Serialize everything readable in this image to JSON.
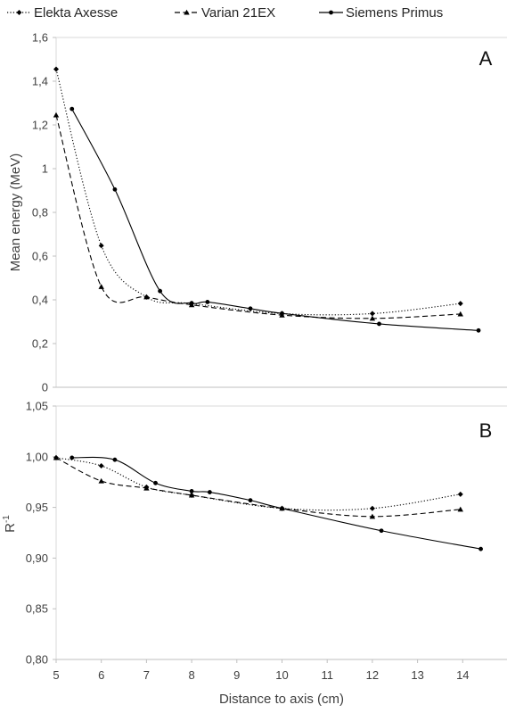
{
  "chart_data": {
    "type": "line",
    "legend": {
      "placement": "top",
      "entries": [
        {
          "name": "Elekta Axesse",
          "marker": "diamond",
          "dash": "dotted"
        },
        {
          "name": "Varian 21EX",
          "marker": "triangle",
          "dash": "dashed"
        },
        {
          "name": "Siemens Primus",
          "marker": "circle",
          "dash": "solid"
        }
      ]
    },
    "xlabel": "Distance to axis (cm)",
    "xlim": [
      5,
      14.5
    ],
    "xticks": [
      5,
      6,
      7,
      8,
      9,
      10,
      11,
      12,
      13,
      14
    ],
    "xtick_labels": [
      "5",
      "6",
      "7",
      "8",
      "9",
      "10",
      "11",
      "12",
      "13",
      "14"
    ],
    "grid": false,
    "line_color": "#000000",
    "panels": [
      {
        "label": "A",
        "ylabel": "Mean energy (MeV)",
        "ylim": [
          0,
          1.6
        ],
        "yticks": [
          0,
          0.2,
          0.4,
          0.6,
          0.8,
          1.0,
          1.2,
          1.4,
          1.6
        ],
        "ytick_labels": [
          "0",
          "0,2",
          "0,4",
          "0,6",
          "0,8",
          "1",
          "1,2",
          "1,4",
          "1,6"
        ],
        "series": [
          {
            "name": "Elekta Axesse",
            "x": [
              5,
              6,
              7,
              8,
              10,
              12,
              13.95
            ],
            "y": [
              1.455,
              0.648,
              0.413,
              0.383,
              0.337,
              0.337,
              0.383
            ]
          },
          {
            "name": "Varian 21EX",
            "x": [
              5,
              6,
              7,
              8,
              10,
              12,
              13.95
            ],
            "y": [
              1.245,
              0.46,
              0.413,
              0.377,
              0.33,
              0.315,
              0.335
            ]
          },
          {
            "name": "Siemens Primus",
            "x": [
              5.35,
              6.3,
              7.3,
              8,
              8.35,
              9.3,
              10,
              12.15,
              14.35
            ],
            "y": [
              1.273,
              0.905,
              0.44,
              0.385,
              0.39,
              0.36,
              0.338,
              0.29,
              0.26
            ]
          }
        ]
      },
      {
        "label": "B",
        "ylabel": "R⁻¹",
        "ylim": [
          0.8,
          1.05
        ],
        "yticks": [
          0.8,
          0.85,
          0.9,
          0.95,
          1.0,
          1.05
        ],
        "ytick_labels": [
          "0,80",
          "0,85",
          "0,90",
          "0,95",
          "1,00",
          "1,05"
        ],
        "series": [
          {
            "name": "Elekta Axesse",
            "x": [
              5,
              6,
              7,
              8,
              10,
              12,
              13.95
            ],
            "y": [
              0.999,
              0.991,
              0.97,
              0.962,
              0.949,
              0.949,
              0.963
            ]
          },
          {
            "name": "Varian 21EX",
            "x": [
              5,
              6,
              7,
              8,
              10,
              12,
              13.95
            ],
            "y": [
              0.999,
              0.976,
              0.969,
              0.962,
              0.949,
              0.941,
              0.948
            ]
          },
          {
            "name": "Siemens Primus",
            "x": [
              5.35,
              6.3,
              7.2,
              8,
              8.4,
              9.3,
              10,
              12.2,
              14.4
            ],
            "y": [
              0.999,
              0.997,
              0.974,
              0.966,
              0.965,
              0.957,
              0.949,
              0.927,
              0.909
            ]
          }
        ]
      }
    ]
  }
}
